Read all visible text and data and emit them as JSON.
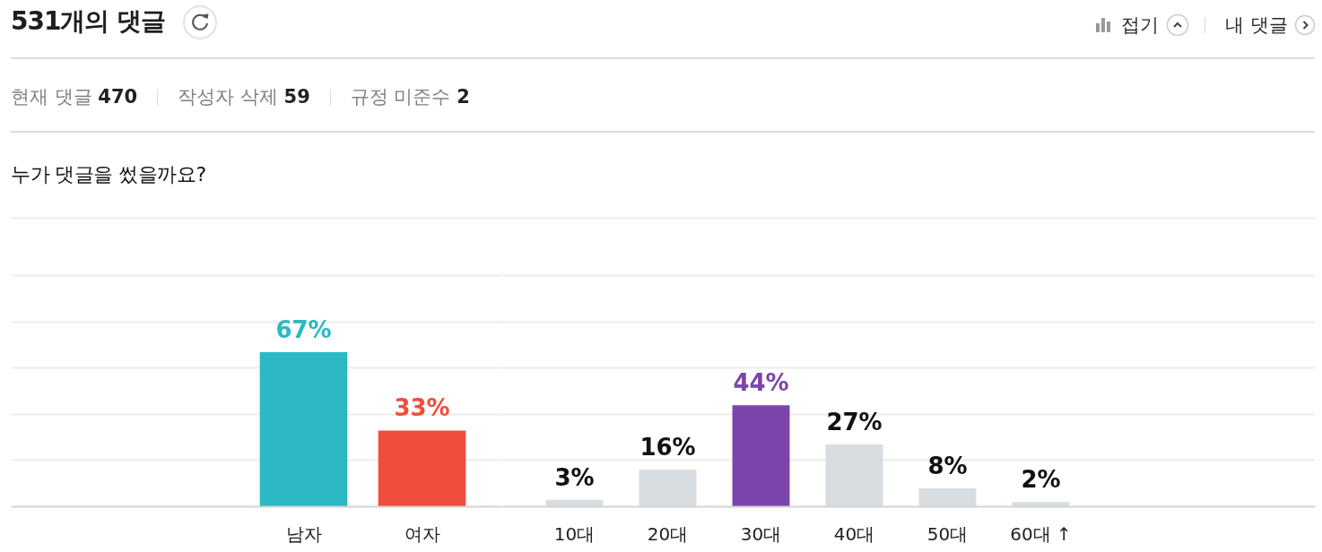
{
  "chart_data": [
    {
      "type": "bar",
      "title": "누가 댓글을 썼을까요?",
      "annotations": [
        "531개의 댓글",
        "접기",
        "내 댓글",
        "현재 댓글 470",
        "작성자 삭제 59",
        "규정 미준수 2"
      ],
      "categories": [
        "남자",
        "여자"
      ],
      "values": [
        67,
        33
      ],
      "colors": [
        "#2cb8c3",
        "#f04e3c"
      ],
      "value_labels": [
        "67%",
        "33%"
      ],
      "ylim": [
        0,
        125
      ],
      "yticks": [
        {
          "value": 0,
          "label": null
        },
        {
          "value": 20,
          "label": null
        },
        {
          "value": 40,
          "label": null
        },
        {
          "value": 60,
          "label": null
        },
        {
          "value": 80,
          "label": null
        },
        {
          "value": 100,
          "label": null
        }
      ],
      "grid": "y",
      "tick_labels": "x"
    },
    {
      "type": "bar",
      "categories": [
        "10대",
        "20대",
        "30대",
        "40대",
        "50대",
        "60대 ↑"
      ],
      "values": [
        3,
        16,
        44,
        27,
        8,
        2
      ],
      "colors": [
        "#d8dde1",
        "#d8dde1",
        "#7b45ab",
        "#d8dde1",
        "#d8dde1",
        "#d8dde1"
      ],
      "value_labels": [
        "3%",
        "16%",
        "44%",
        "27%",
        "8%",
        "2%"
      ],
      "ylim": [
        0,
        125
      ],
      "yticks": [
        {
          "value": 0,
          "label": null
        },
        {
          "value": 20,
          "label": null
        },
        {
          "value": 40,
          "label": null
        },
        {
          "value": 60,
          "label": null
        },
        {
          "value": 80,
          "label": null
        },
        {
          "value": 100,
          "label": null
        }
      ],
      "grid": "y",
      "tick_labels": "x"
    }
  ]
}
